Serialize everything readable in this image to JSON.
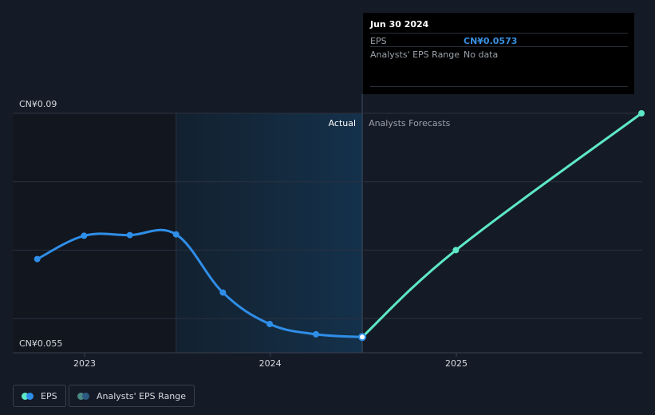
{
  "chart_data": {
    "type": "line",
    "y_axis": {
      "top_label": "CN¥0.09",
      "bottom_label": "CN¥0.055",
      "min": 0.055,
      "max": 0.09
    },
    "x_axis": {
      "ticks": [
        "2023",
        "2024",
        "2025"
      ]
    },
    "region_labels": {
      "actual": "Actual",
      "forecast": "Analysts Forecasts"
    },
    "series": [
      {
        "name": "EPS",
        "color": "#2f8ee8",
        "points": [
          {
            "x": "2022-09-30",
            "y": 0.0687
          },
          {
            "x": "2022-12-31",
            "y": 0.0721
          },
          {
            "x": "2023-03-31",
            "y": 0.0722
          },
          {
            "x": "2023-06-30",
            "y": 0.0723
          },
          {
            "x": "2023-09-30",
            "y": 0.0638
          },
          {
            "x": "2023-12-31",
            "y": 0.0592
          },
          {
            "x": "2024-03-31",
            "y": 0.0577
          },
          {
            "x": "2024-06-30",
            "y": 0.0573
          }
        ]
      },
      {
        "name": "EPS Forecast",
        "color": "#5ee8c8",
        "points": [
          {
            "x": "2024-06-30",
            "y": 0.0573
          },
          {
            "x": "2024-12-31",
            "y": 0.07
          },
          {
            "x": "2025-12-31",
            "y": 0.09
          }
        ]
      }
    ],
    "grid": true,
    "legend_position": "bottom-left"
  },
  "tooltip": {
    "date": "Jun 30 2024",
    "eps_label": "EPS",
    "eps_value": "CN¥0.0573",
    "range_label": "Analysts' EPS Range",
    "range_value": "No data"
  },
  "legend": {
    "items": [
      {
        "label": "EPS",
        "colors": [
          "#5ee8c8",
          "#2f8ee8"
        ]
      },
      {
        "label": "Analysts' EPS Range",
        "colors": [
          "#4a8a86",
          "#2d5a80"
        ]
      }
    ]
  },
  "colors": {
    "background": "#151b26",
    "past_shade": "#12161e",
    "actual_highlight": "#14293b",
    "grid": "#2a3140",
    "axis_text": "#d6d9de"
  }
}
